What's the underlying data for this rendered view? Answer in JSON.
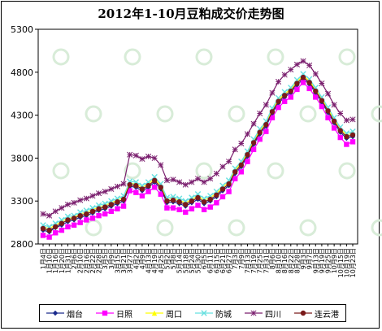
{
  "chart_data": {
    "type": "line",
    "title": "2012年1-10月豆粕成交价走势图",
    "ylim": [
      2800,
      5300
    ],
    "yticks": [
      2800,
      3300,
      3800,
      4300,
      4800,
      5300
    ],
    "grid": false,
    "legend_position": "bottom",
    "x": [
      "1月4日",
      "1月10日",
      "1月16日",
      "1月20日",
      "1月31日",
      "2月6日",
      "2月10日",
      "2月16日",
      "2月22日",
      "2月28日",
      "3月5日",
      "3月9日",
      "3月15日",
      "3月21日",
      "3月27日",
      "4月2日",
      "4月9日",
      "4月13日",
      "4月19日",
      "4月25日",
      "5月2日",
      "5月8日",
      "5月14日",
      "5月18日",
      "5月24日",
      "5月30日",
      "6月5日",
      "6月11日",
      "6月15日",
      "6月21日",
      "6月27日",
      "7月3日",
      "7月9日",
      "7月13日",
      "7月19日",
      "7月25日",
      "7月31日",
      "8月6日",
      "8月10日",
      "8月16日",
      "8月22日",
      "8月28日",
      "9月3日",
      "9月7日",
      "9月13日",
      "9月19日",
      "9月25日",
      "10月9日",
      "10月15日",
      "10月19日",
      "10月23日"
    ],
    "series": [
      {
        "name": "烟台",
        "color": "#1a2a8c",
        "marker": "diamond",
        "values": [
          2960,
          2940,
          2990,
          3020,
          3060,
          3080,
          3110,
          3130,
          3160,
          3190,
          3210,
          3240,
          3270,
          3300,
          3470,
          3460,
          3420,
          3460,
          3520,
          3440,
          3280,
          3290,
          3270,
          3240,
          3280,
          3320,
          3270,
          3300,
          3350,
          3420,
          3480,
          3620,
          3700,
          3820,
          3960,
          4080,
          4170,
          4320,
          4440,
          4510,
          4560,
          4650,
          4720,
          4660,
          4560,
          4450,
          4330,
          4210,
          4100,
          4030,
          4050
        ]
      },
      {
        "name": "日照",
        "color": "#ff00ff",
        "marker": "square",
        "values": [
          2900,
          2880,
          2930,
          2960,
          3000,
          3020,
          3050,
          3080,
          3100,
          3130,
          3150,
          3180,
          3210,
          3240,
          3420,
          3400,
          3360,
          3410,
          3460,
          3380,
          3220,
          3220,
          3200,
          3170,
          3210,
          3250,
          3200,
          3230,
          3280,
          3350,
          3410,
          3560,
          3640,
          3760,
          3900,
          4020,
          4110,
          4270,
          4390,
          4460,
          4510,
          4600,
          4680,
          4610,
          4510,
          4400,
          4270,
          4150,
          4040,
          3960,
          3990
        ]
      },
      {
        "name": "周口",
        "color": "#ffff00",
        "marker": "triangle",
        "values": [
          3000,
          2980,
          3020,
          3060,
          3100,
          3110,
          3150,
          3170,
          3200,
          3230,
          3250,
          3280,
          3310,
          3340,
          3510,
          3500,
          3460,
          3500,
          3560,
          3480,
          3320,
          3330,
          3310,
          3280,
          3320,
          3360,
          3310,
          3340,
          3390,
          3460,
          3520,
          3660,
          3740,
          3860,
          4000,
          4120,
          4210,
          4360,
          4480,
          4550,
          4600,
          4690,
          4760,
          4700,
          4600,
          4490,
          4370,
          4250,
          4140,
          4070,
          4090
        ]
      },
      {
        "name": "防城",
        "color": "#66e0e0",
        "marker": "x",
        "values": [
          3020,
          3000,
          3040,
          3080,
          3120,
          3130,
          3170,
          3190,
          3220,
          3250,
          3270,
          3300,
          3330,
          3360,
          3530,
          3520,
          3480,
          3520,
          3580,
          3500,
          3340,
          3350,
          3330,
          3300,
          3340,
          3380,
          3330,
          3360,
          3410,
          3480,
          3540,
          3680,
          3760,
          3880,
          4020,
          4140,
          4230,
          4380,
          4500,
          4570,
          4620,
          4710,
          4780,
          4720,
          4620,
          4510,
          4390,
          4270,
          4160,
          4090,
          4110
        ]
      },
      {
        "name": "四川",
        "color": "#7a1f6e",
        "marker": "star",
        "values": [
          3150,
          3130,
          3180,
          3220,
          3260,
          3280,
          3310,
          3330,
          3360,
          3390,
          3410,
          3440,
          3470,
          3500,
          3840,
          3830,
          3790,
          3820,
          3800,
          3720,
          3540,
          3550,
          3520,
          3490,
          3520,
          3560,
          3520,
          3560,
          3620,
          3700,
          3760,
          3900,
          3970,
          4080,
          4200,
          4320,
          4420,
          4560,
          4690,
          4770,
          4830,
          4890,
          4930,
          4880,
          4780,
          4670,
          4550,
          4420,
          4320,
          4240,
          4250
        ]
      },
      {
        "name": "连云港",
        "color": "#7a1a1a",
        "marker": "circle",
        "values": [
          2980,
          2960,
          3000,
          3040,
          3080,
          3100,
          3130,
          3150,
          3180,
          3210,
          3230,
          3260,
          3290,
          3320,
          3490,
          3480,
          3440,
          3480,
          3540,
          3460,
          3300,
          3310,
          3290,
          3260,
          3300,
          3340,
          3290,
          3320,
          3370,
          3440,
          3500,
          3640,
          3720,
          3840,
          3980,
          4100,
          4190,
          4340,
          4460,
          4530,
          4580,
          4670,
          4740,
          4680,
          4580,
          4470,
          4350,
          4230,
          4120,
          4050,
          4070
        ]
      }
    ]
  }
}
